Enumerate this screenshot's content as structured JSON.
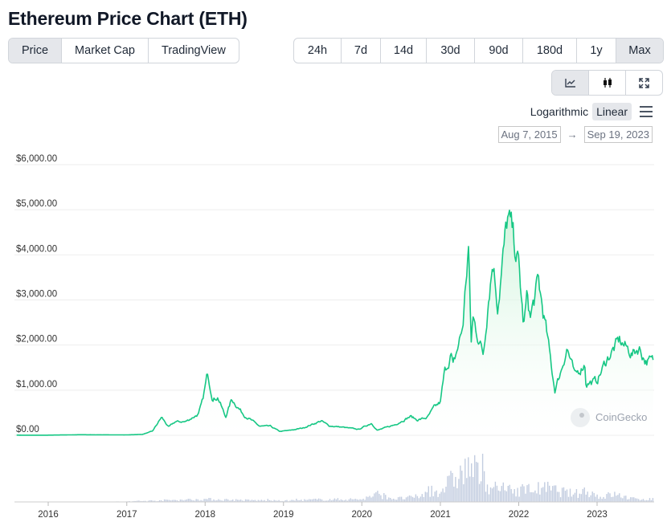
{
  "page": {
    "title": "Ethereum Price Chart (ETH)"
  },
  "type_tabs": [
    {
      "label": "Price",
      "active": true
    },
    {
      "label": "Market Cap",
      "active": false
    },
    {
      "label": "TradingView",
      "active": false
    }
  ],
  "range_tabs": [
    {
      "label": "24h",
      "active": false
    },
    {
      "label": "7d",
      "active": false
    },
    {
      "label": "14d",
      "active": false
    },
    {
      "label": "30d",
      "active": false
    },
    {
      "label": "90d",
      "active": false
    },
    {
      "label": "180d",
      "active": false
    },
    {
      "label": "1y",
      "active": false
    },
    {
      "label": "Max",
      "active": true
    }
  ],
  "view_tabs": [
    {
      "icon": "line-chart-icon",
      "active": true
    },
    {
      "icon": "candlestick-icon",
      "active": false
    },
    {
      "icon": "expand-icon",
      "active": false
    }
  ],
  "scale": {
    "logarithmic_label": "Logarithmic",
    "linear_label": "Linear",
    "selected": "Linear"
  },
  "date_range": {
    "from": "Aug 7, 2015",
    "arrow": "→",
    "to": "Sep 19, 2023"
  },
  "watermark": {
    "label": "CoinGecko",
    "icon": "coingecko-logo-icon"
  },
  "colors": {
    "line": "#16c784",
    "fill_top": "#c8f2d6",
    "volume": "#c3cde0",
    "grid": "#eeeeee"
  },
  "chart_data": {
    "type": "area",
    "title": "",
    "xlabel": "",
    "ylabel": "",
    "ylim": [
      0,
      6000
    ],
    "y_ticks": [
      "$0.00",
      "$1,000.00",
      "$2,000.00",
      "$3,000.00",
      "$4,000.00",
      "$5,000.00",
      "$6,000.00"
    ],
    "x_ticks": [
      "2016",
      "2017",
      "2018",
      "2019",
      "2020",
      "2021",
      "2022",
      "2023"
    ],
    "grid": true,
    "series": [
      {
        "kind": "price",
        "x": [
          "2015-08-07",
          "2015-12-01",
          "2016-06-01",
          "2017-01-01",
          "2017-03-15",
          "2017-05-01",
          "2017-06-12",
          "2017-07-15",
          "2017-08-15",
          "2017-10-01",
          "2017-12-01",
          "2017-12-20",
          "2018-01-13",
          "2018-02-06",
          "2018-03-01",
          "2018-04-06",
          "2018-05-05",
          "2018-07-01",
          "2018-09-12",
          "2018-11-01",
          "2018-12-15",
          "2019-02-01",
          "2019-04-01",
          "2019-06-26",
          "2019-08-01",
          "2019-10-01",
          "2019-12-18",
          "2020-02-15",
          "2020-03-13",
          "2020-06-01",
          "2020-08-15",
          "2020-09-15",
          "2020-11-01",
          "2020-12-01",
          "2021-01-01",
          "2021-01-20",
          "2021-02-20",
          "2021-03-01",
          "2021-04-15",
          "2021-05-12",
          "2021-05-24",
          "2021-06-01",
          "2021-07-20",
          "2021-08-15",
          "2021-09-03",
          "2021-09-25",
          "2021-11-10",
          "2021-12-01",
          "2022-01-01",
          "2022-01-24",
          "2022-02-10",
          "2022-02-24",
          "2022-04-02",
          "2022-05-10",
          "2022-06-18",
          "2022-07-15",
          "2022-08-14",
          "2022-09-20",
          "2022-11-05",
          "2022-11-10",
          "2022-12-31",
          "2023-02-15",
          "2023-04-15",
          "2023-06-15",
          "2023-07-15",
          "2023-08-15",
          "2023-09-19"
        ],
        "y": [
          3,
          1,
          12,
          8,
          20,
          90,
          400,
          180,
          300,
          300,
          470,
          750,
          1380,
          800,
          850,
          400,
          800,
          450,
          200,
          200,
          85,
          110,
          160,
          320,
          210,
          180,
          130,
          270,
          110,
          230,
          420,
          340,
          390,
          600,
          730,
          1380,
          1800,
          1500,
          2400,
          4200,
          2000,
          2600,
          1800,
          3200,
          3900,
          2900,
          4800,
          4500,
          3750,
          2400,
          3100,
          2600,
          3400,
          2300,
          1000,
          1400,
          1950,
          1300,
          1600,
          1150,
          1200,
          1680,
          2100,
          1800,
          1950,
          1650,
          1640
        ]
      },
      {
        "kind": "volume",
        "note": "relative trading volume",
        "x": [
          "2015-08-07",
          "2017-01-01",
          "2017-06-01",
          "2018-01-01",
          "2018-06-01",
          "2019-01-01",
          "2019-06-01",
          "2020-01-01",
          "2020-03-13",
          "2020-06-01",
          "2020-09-01",
          "2021-01-01",
          "2021-02-20",
          "2021-05-19",
          "2021-09-01",
          "2021-12-01",
          "2022-05-12",
          "2022-06-18",
          "2022-09-15",
          "2022-11-09",
          "2023-01-15",
          "2023-03-15",
          "2023-06-15",
          "2023-09-19"
        ],
        "y": [
          0,
          0.01,
          0.04,
          0.07,
          0.05,
          0.03,
          0.06,
          0.07,
          0.2,
          0.08,
          0.12,
          0.3,
          0.55,
          0.9,
          0.35,
          0.3,
          0.35,
          0.3,
          0.2,
          0.3,
          0.12,
          0.2,
          0.08,
          0.07
        ]
      }
    ]
  }
}
